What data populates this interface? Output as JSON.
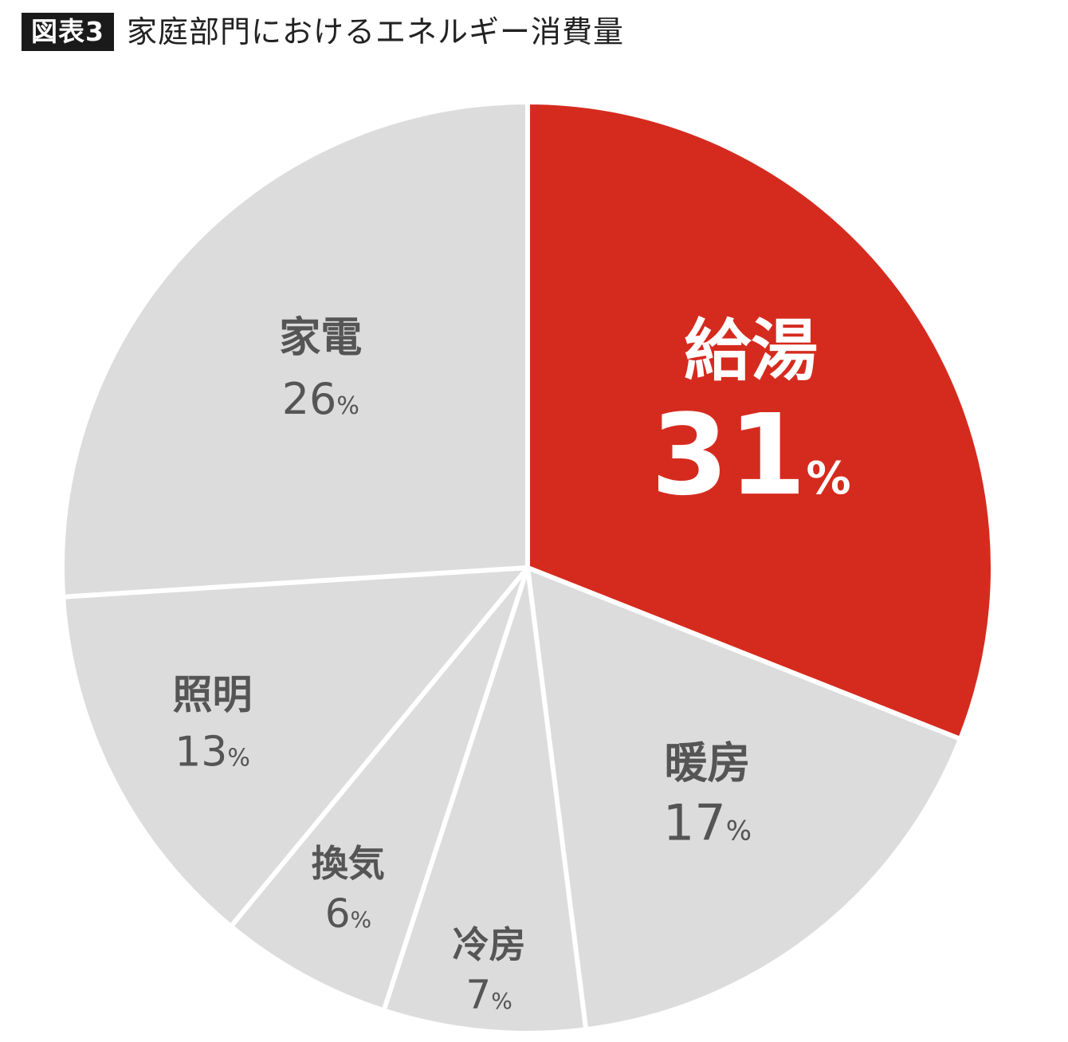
{
  "header": {
    "badge": "図表3",
    "title": "家庭部門におけるエネルギー消費量"
  },
  "chart_data": {
    "type": "pie",
    "title": "家庭部門におけるエネルギー消費量",
    "unit": "%",
    "categories": [
      "給湯",
      "暖房",
      "冷房",
      "換気",
      "照明",
      "家電"
    ],
    "values": [
      31,
      17,
      7,
      6,
      13,
      26
    ],
    "highlight": "給湯",
    "colors": {
      "highlight": "#d52b1e",
      "default": "#dcdcdc",
      "separator": "#ffffff",
      "label": "#555555",
      "highlight_label": "#ffffff"
    }
  }
}
